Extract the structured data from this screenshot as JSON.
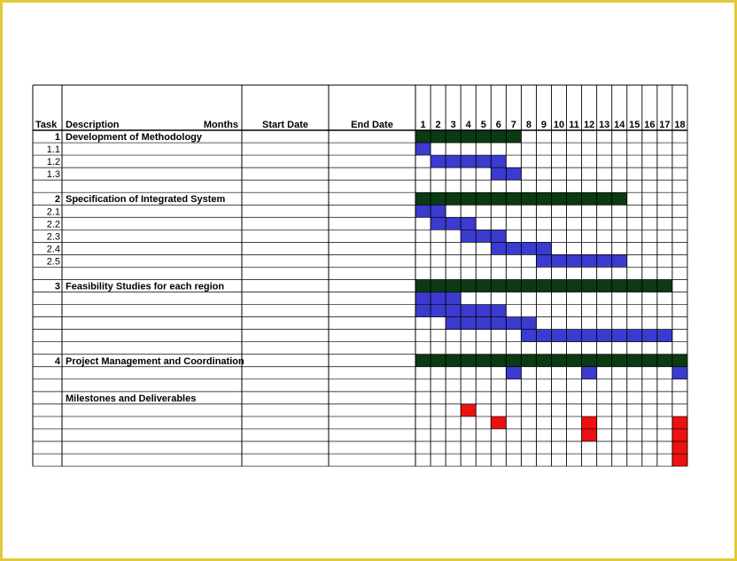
{
  "headers": {
    "task": "Task",
    "description": "Description",
    "months": "Months",
    "start_date": "Start Date",
    "end_date": "End Date"
  },
  "month_labels": [
    "1",
    "2",
    "3",
    "4",
    "5",
    "6",
    "7",
    "8",
    "9",
    "10",
    "11",
    "12",
    "13",
    "14",
    "15",
    "16",
    "17",
    "18"
  ],
  "rows": [
    {
      "task": "1",
      "description": "Development of Methodology",
      "kind": "task"
    },
    {
      "task": "1.1",
      "description": "",
      "kind": "sub"
    },
    {
      "task": "1.2",
      "description": "",
      "kind": "sub"
    },
    {
      "task": "1.3",
      "description": "",
      "kind": "sub"
    },
    {
      "task": "",
      "description": "",
      "kind": "blank"
    },
    {
      "task": "2",
      "description": "Specification of Integrated System",
      "kind": "task"
    },
    {
      "task": "2.1",
      "description": "",
      "kind": "sub"
    },
    {
      "task": "2.2",
      "description": "",
      "kind": "sub"
    },
    {
      "task": "2.3",
      "description": "",
      "kind": "sub"
    },
    {
      "task": "2.4",
      "description": "",
      "kind": "sub"
    },
    {
      "task": "2.5",
      "description": "",
      "kind": "sub"
    },
    {
      "task": "",
      "description": "",
      "kind": "blank"
    },
    {
      "task": "3",
      "description": "Feasibility Studies for each region",
      "kind": "task"
    },
    {
      "task": "",
      "description": "",
      "kind": "sub"
    },
    {
      "task": "",
      "description": "",
      "kind": "sub"
    },
    {
      "task": "",
      "description": "",
      "kind": "sub"
    },
    {
      "task": "",
      "description": "",
      "kind": "sub"
    },
    {
      "task": "",
      "description": "",
      "kind": "blank"
    },
    {
      "task": "4",
      "description": "Project Management and Coordination",
      "kind": "task"
    },
    {
      "task": "",
      "description": "",
      "kind": "sub"
    },
    {
      "task": "",
      "description": "",
      "kind": "blank"
    },
    {
      "task": "",
      "description": "Milestones and Deliverables",
      "kind": "heading"
    },
    {
      "task": "",
      "description": "",
      "kind": "sub"
    },
    {
      "task": "",
      "description": "",
      "kind": "sub"
    },
    {
      "task": "",
      "description": "",
      "kind": "sub"
    },
    {
      "task": "",
      "description": "",
      "kind": "sub"
    },
    {
      "task": "",
      "description": "",
      "kind": "sub"
    }
  ],
  "colors": {
    "task_bar": "#0b3a13",
    "subtask_bar": "#3b3bd0",
    "milestone": "#ee1111",
    "frame": "#e3c93a",
    "grid": "#000000"
  },
  "bars": [
    {
      "row": 0,
      "start": 1,
      "end": 7,
      "kind": "task"
    },
    {
      "row": 1,
      "start": 1,
      "end": 1,
      "kind": "subtask"
    },
    {
      "row": 2,
      "start": 2,
      "end": 6,
      "kind": "subtask"
    },
    {
      "row": 3,
      "start": 6,
      "end": 7,
      "kind": "subtask"
    },
    {
      "row": 5,
      "start": 1,
      "end": 14,
      "kind": "task"
    },
    {
      "row": 6,
      "start": 1,
      "end": 2,
      "kind": "subtask"
    },
    {
      "row": 7,
      "start": 2,
      "end": 4,
      "kind": "subtask"
    },
    {
      "row": 8,
      "start": 4,
      "end": 6,
      "kind": "subtask"
    },
    {
      "row": 9,
      "start": 6,
      "end": 9,
      "kind": "subtask"
    },
    {
      "row": 10,
      "start": 9,
      "end": 14,
      "kind": "subtask"
    },
    {
      "row": 12,
      "start": 1,
      "end": 17,
      "kind": "task"
    },
    {
      "row": 13,
      "start": 1,
      "end": 3,
      "kind": "subtask"
    },
    {
      "row": 14,
      "start": 1,
      "end": 6,
      "kind": "subtask"
    },
    {
      "row": 15,
      "start": 3,
      "end": 8,
      "kind": "subtask"
    },
    {
      "row": 16,
      "start": 8,
      "end": 17,
      "kind": "subtask"
    },
    {
      "row": 18,
      "start": 1,
      "end": 18,
      "kind": "task"
    },
    {
      "row": 19,
      "start": 7,
      "end": 7,
      "kind": "subtask"
    },
    {
      "row": 19,
      "start": 12,
      "end": 12,
      "kind": "subtask"
    },
    {
      "row": 19,
      "start": 18,
      "end": 18,
      "kind": "subtask"
    },
    {
      "row": 22,
      "start": 4,
      "end": 4,
      "kind": "milestone"
    },
    {
      "row": 23,
      "start": 6,
      "end": 6,
      "kind": "milestone"
    },
    {
      "row": 23,
      "start": 12,
      "end": 12,
      "kind": "milestone"
    },
    {
      "row": 23,
      "start": 18,
      "end": 18,
      "kind": "milestone"
    },
    {
      "row": 24,
      "start": 12,
      "end": 12,
      "kind": "milestone"
    },
    {
      "row": 24,
      "start": 18,
      "end": 18,
      "kind": "milestone"
    },
    {
      "row": 25,
      "start": 18,
      "end": 18,
      "kind": "milestone"
    },
    {
      "row": 26,
      "start": 18,
      "end": 18,
      "kind": "milestone"
    }
  ]
}
